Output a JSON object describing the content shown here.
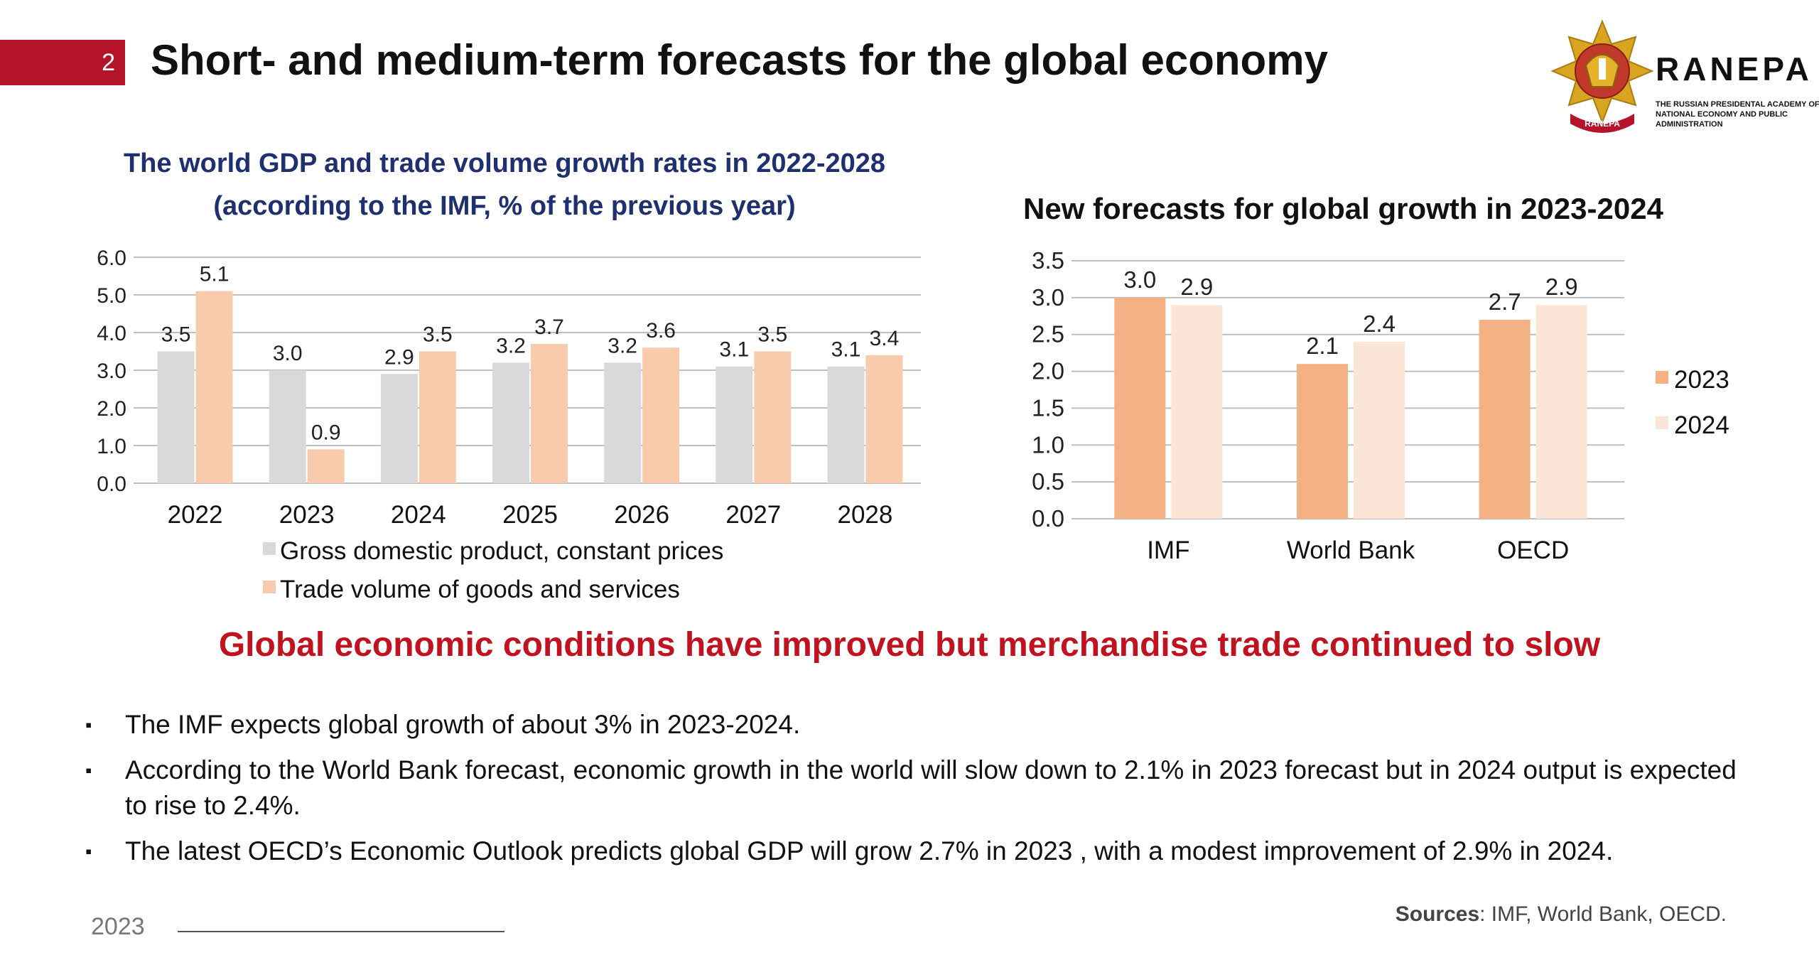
{
  "slide": {
    "page_number": "2",
    "title": "Short- and medium-term forecasts for the global economy",
    "headline": "Global economic conditions have improved but merchandise trade continued to slow",
    "bullets": [
      "The IMF expects global growth of about 3% in 2023-2024.",
      "According to the World Bank forecast, economic growth in the world will slow down to 2.1% in 2023 forecast but in 2024 output is expected to rise to 2.4%.",
      "The latest OECD’s Economic Outlook predicts global GDP will grow 2.7% in 2023 , with a modest improvement of 2.9% in 2024."
    ],
    "bullet_marker": "▪",
    "footer_year": "2023",
    "sources_label": "Sources",
    "sources_text": ": IMF, World Bank, OECD."
  },
  "logo": {
    "wordmark": "RANEPA",
    "subtitle": "THE RUSSIAN PRESIDENTAL ACADEMY OF NATIONAL ECONOMY AND PUBLIC ADMINISTRATION",
    "emblem_ribbon": "RANEPA"
  },
  "colors": {
    "accent": "#b5132a",
    "headline": "#c0131f",
    "chart1_title": "#1f3070",
    "gdp": "#d9d9d9",
    "trade": "#f8cbad",
    "y2023": "#f4b183",
    "y2024": "#fbe5d6"
  },
  "chart_data": [
    {
      "type": "bar",
      "title": "The world GDP and trade volume growth rates in 2022-2028",
      "subtitle": "(according to the IMF, % of the previous year)",
      "categories": [
        "2022",
        "2023",
        "2024",
        "2025",
        "2026",
        "2027",
        "2028"
      ],
      "series": [
        {
          "name": "Gross domestic product, constant prices",
          "values": [
            3.5,
            3.0,
            2.9,
            3.2,
            3.2,
            3.1,
            3.1
          ],
          "labels": [
            "3.5",
            "3.0",
            "2.9",
            "3.2",
            "3.2",
            "3.1",
            "3.1"
          ]
        },
        {
          "name": "Trade volume of goods and services",
          "values": [
            5.1,
            0.9,
            3.5,
            3.7,
            3.6,
            3.5,
            3.4
          ],
          "labels": [
            "5.1",
            "0.9",
            "3.5",
            "3.7",
            "3.6",
            "3.5",
            "3.4"
          ]
        }
      ],
      "ylim": [
        0,
        6
      ],
      "yticks": [
        "0.0",
        "1.0",
        "2.0",
        "3.0",
        "4.0",
        "5.0",
        "6.0"
      ],
      "grid": true,
      "legend": "bottom"
    },
    {
      "type": "bar",
      "title": "New forecasts for global growth in 2023-2024",
      "categories": [
        "IMF",
        "World Bank",
        "OECD"
      ],
      "series": [
        {
          "name": "2023",
          "values": [
            3.0,
            2.1,
            2.7
          ],
          "labels": [
            "3.0",
            "2.1",
            "2.7"
          ]
        },
        {
          "name": "2024",
          "values": [
            2.9,
            2.4,
            2.9
          ],
          "labels": [
            "2.9",
            "2.4",
            "2.9"
          ]
        }
      ],
      "ylim": [
        0,
        3.5
      ],
      "yticks": [
        "0.0",
        "0.5",
        "1.0",
        "1.5",
        "2.0",
        "2.5",
        "3.0",
        "3.5"
      ],
      "grid": true,
      "legend": "right"
    }
  ]
}
